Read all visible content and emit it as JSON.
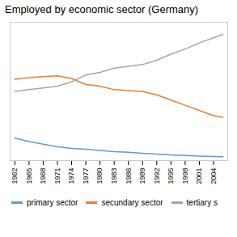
{
  "chart_data": {
    "type": "line",
    "title": "Employed by economic sector (Germany)",
    "x": [
      1962,
      1965,
      1968,
      1971,
      1974,
      1977,
      1980,
      1983,
      1986,
      1989,
      1992,
      1995,
      1998,
      2001,
      2004,
      2006
    ],
    "series": [
      {
        "name": "primary sector",
        "color": "#5b9bd5",
        "values": [
          13,
          11,
          9.5,
          8,
          7,
          6.5,
          5.8,
          5.2,
          4.8,
          4.2,
          3.8,
          3.3,
          2.9,
          2.6,
          2.3,
          2.2
        ]
      },
      {
        "name": "secundary sector",
        "color": "#ed7d31",
        "values": [
          47,
          48,
          48.5,
          49,
          47.5,
          44,
          43,
          41,
          40.5,
          40,
          38,
          35,
          32,
          29,
          26,
          25
        ]
      },
      {
        "name": "tertiary s",
        "color": "#a5a5a5",
        "values": [
          40,
          41,
          42,
          43,
          45.5,
          49.5,
          51,
          53.5,
          54.5,
          55.5,
          58,
          61.5,
          64.5,
          68,
          71,
          73
        ]
      }
    ],
    "xlim": [
      1961,
      2007
    ],
    "ylim": [
      0,
      80
    ],
    "xticks": [
      1962,
      1965,
      1968,
      1971,
      1974,
      1977,
      1980,
      1983,
      1986,
      1989,
      1992,
      1995,
      1998,
      2001,
      2004
    ],
    "tick_labels": "x",
    "grid": false,
    "legend": "bottom"
  }
}
